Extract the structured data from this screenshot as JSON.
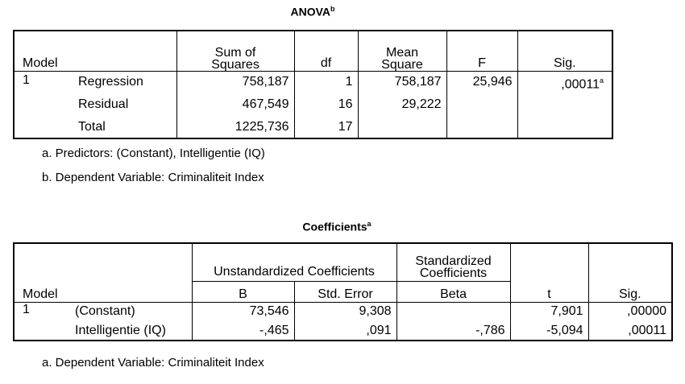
{
  "anova": {
    "title": "ANOVA",
    "title_sup": "b",
    "headers": {
      "model": "Model",
      "sum_of_squares_1": "Sum of",
      "sum_of_squares_2": "Squares",
      "df": "df",
      "mean_square_1": "Mean",
      "mean_square_2": "Square",
      "f": "F",
      "sig": "Sig."
    },
    "model_number": "1",
    "rows": [
      {
        "label": "Regression",
        "ss": "758,187",
        "df": "1",
        "ms": "758,187",
        "f": "25,946",
        "sig": ",00011",
        "sig_sup": "a"
      },
      {
        "label": "Residual",
        "ss": "467,549",
        "df": "16",
        "ms": "29,222",
        "f": "",
        "sig": "",
        "sig_sup": ""
      },
      {
        "label": "Total",
        "ss": "1225,736",
        "df": "17",
        "ms": "",
        "f": "",
        "sig": "",
        "sig_sup": ""
      }
    ],
    "footnotes": [
      "a. Predictors: (Constant), Intelligentie (IQ)",
      "b. Dependent Variable: Criminaliteit Index"
    ]
  },
  "coefficients": {
    "title": "Coefficients",
    "title_sup": "a",
    "headers": {
      "model": "Model",
      "unstandardized": "Unstandardized Coefficients",
      "standardized_1": "Standardized",
      "standardized_2": "Coefficients",
      "b": "B",
      "std_error": "Std. Error",
      "beta": "Beta",
      "t": "t",
      "sig": "Sig."
    },
    "model_number": "1",
    "rows": [
      {
        "label": "(Constant)",
        "b": "73,546",
        "se": "9,308",
        "beta": "",
        "t": "7,901",
        "sig": ",00000"
      },
      {
        "label": "Intelligentie (IQ)",
        "b": "-,465",
        "se": ",091",
        "beta": "-,786",
        "t": "-5,094",
        "sig": ",00011"
      }
    ],
    "footnotes": [
      "a. Dependent Variable: Criminaliteit Index"
    ]
  }
}
